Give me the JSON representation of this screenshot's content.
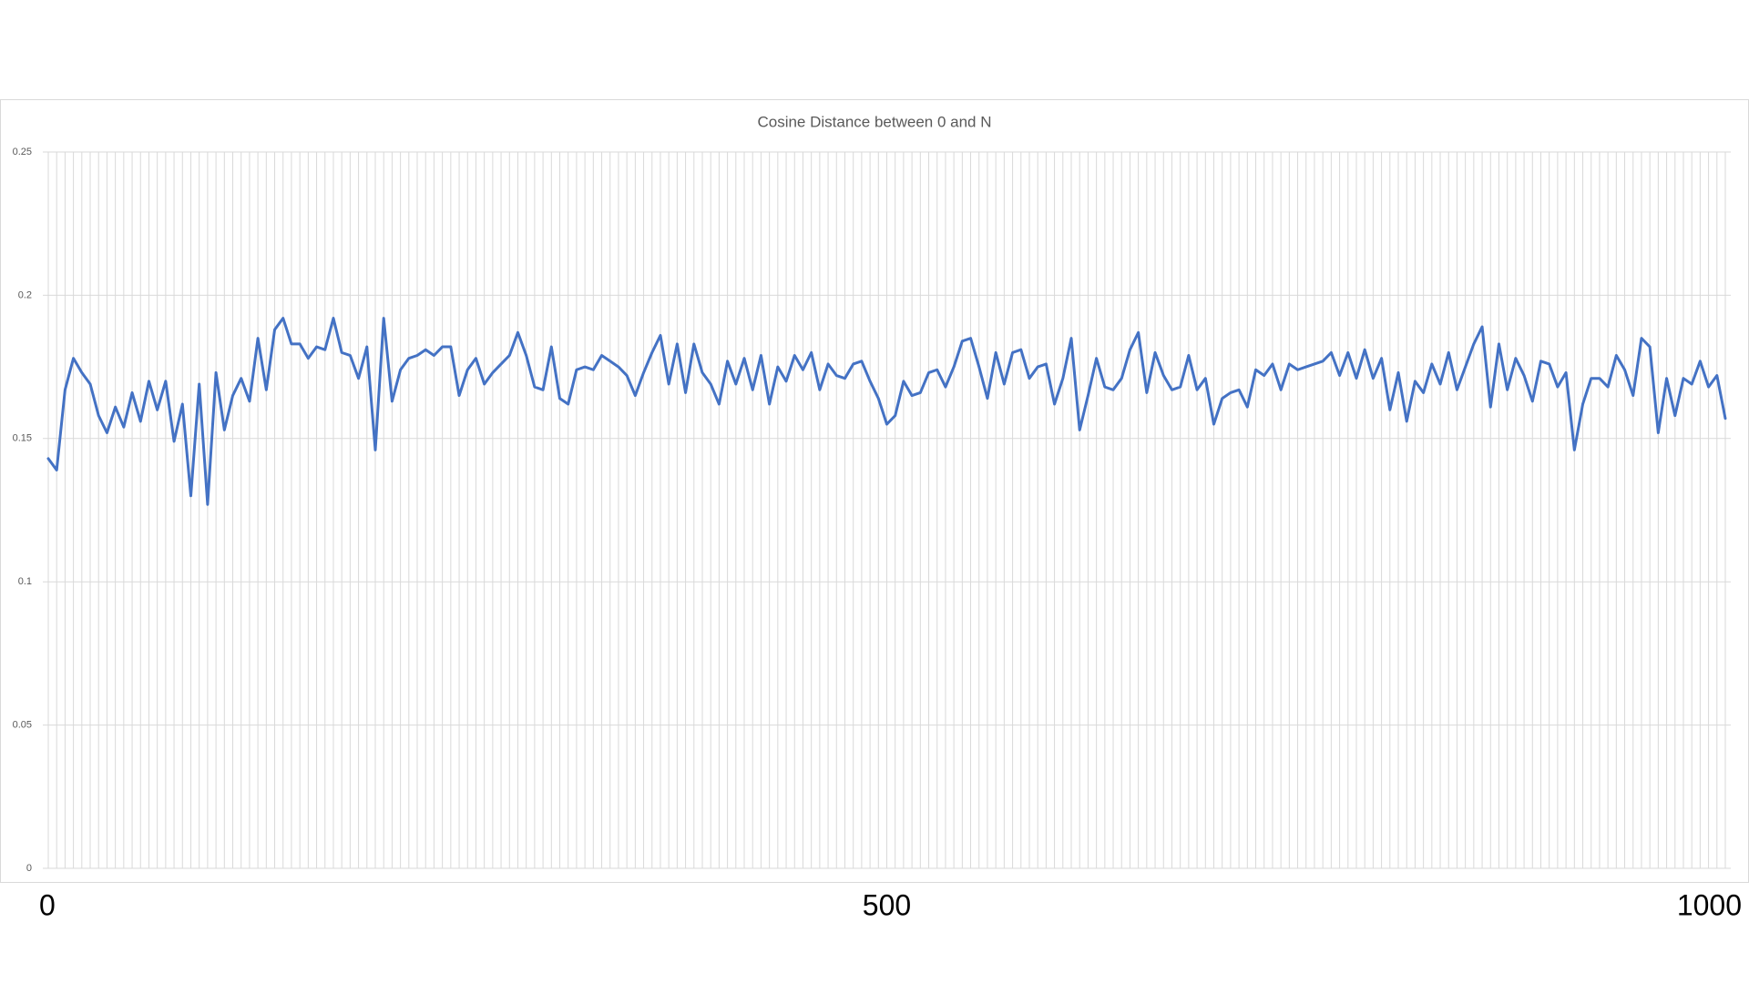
{
  "chart_data": {
    "type": "line",
    "title": "Cosine Distance between 0 and N",
    "x": [
      0,
      5,
      10,
      15,
      20,
      25,
      30,
      35,
      40,
      45,
      50,
      55,
      60,
      65,
      70,
      75,
      80,
      85,
      90,
      95,
      100,
      105,
      110,
      115,
      120,
      125,
      130,
      135,
      140,
      145,
      150,
      155,
      160,
      165,
      170,
      175,
      180,
      185,
      190,
      195,
      200,
      205,
      210,
      215,
      220,
      225,
      230,
      235,
      240,
      245,
      250,
      255,
      260,
      265,
      270,
      275,
      280,
      285,
      290,
      295,
      300,
      305,
      310,
      315,
      320,
      325,
      330,
      335,
      340,
      345,
      350,
      355,
      360,
      365,
      370,
      375,
      380,
      385,
      390,
      395,
      400,
      405,
      410,
      415,
      420,
      425,
      430,
      435,
      440,
      445,
      450,
      455,
      460,
      465,
      470,
      475,
      480,
      485,
      490,
      495,
      500,
      505,
      510,
      515,
      520,
      525,
      530,
      535,
      540,
      545,
      550,
      555,
      560,
      565,
      570,
      575,
      580,
      585,
      590,
      595,
      600,
      605,
      610,
      615,
      620,
      625,
      630,
      635,
      640,
      645,
      650,
      655,
      660,
      665,
      670,
      675,
      680,
      685,
      690,
      695,
      700,
      705,
      710,
      715,
      720,
      725,
      730,
      735,
      740,
      745,
      750,
      755,
      760,
      765,
      770,
      775,
      780,
      785,
      790,
      795,
      800,
      805,
      810,
      815,
      820,
      825,
      830,
      835,
      840,
      845,
      850,
      855,
      860,
      865,
      870,
      875,
      880,
      885,
      890,
      895,
      900,
      905,
      910,
      915,
      920,
      925,
      930,
      935,
      940,
      945,
      950,
      955,
      960,
      965,
      970,
      975,
      980,
      985,
      990,
      995,
      1000
    ],
    "values": [
      0.143,
      0.139,
      0.167,
      0.178,
      0.173,
      0.169,
      0.158,
      0.152,
      0.161,
      0.154,
      0.166,
      0.156,
      0.17,
      0.16,
      0.17,
      0.149,
      0.162,
      0.13,
      0.169,
      0.127,
      0.173,
      0.153,
      0.165,
      0.171,
      0.163,
      0.185,
      0.167,
      0.188,
      0.192,
      0.183,
      0.183,
      0.178,
      0.182,
      0.181,
      0.192,
      0.18,
      0.179,
      0.171,
      0.182,
      0.146,
      0.192,
      0.163,
      0.174,
      0.178,
      0.179,
      0.181,
      0.179,
      0.182,
      0.182,
      0.165,
      0.174,
      0.178,
      0.169,
      0.173,
      0.176,
      0.179,
      0.187,
      0.179,
      0.168,
      0.167,
      0.182,
      0.164,
      0.162,
      0.174,
      0.175,
      0.174,
      0.179,
      0.177,
      0.175,
      0.172,
      0.165,
      0.173,
      0.18,
      0.186,
      0.169,
      0.183,
      0.166,
      0.183,
      0.173,
      0.169,
      0.162,
      0.177,
      0.169,
      0.178,
      0.167,
      0.179,
      0.162,
      0.175,
      0.17,
      0.179,
      0.174,
      0.18,
      0.167,
      0.176,
      0.172,
      0.171,
      0.176,
      0.177,
      0.17,
      0.164,
      0.155,
      0.158,
      0.17,
      0.165,
      0.166,
      0.173,
      0.174,
      0.168,
      0.175,
      0.184,
      0.185,
      0.175,
      0.164,
      0.18,
      0.169,
      0.18,
      0.181,
      0.171,
      0.175,
      0.176,
      0.162,
      0.171,
      0.185,
      0.153,
      0.165,
      0.178,
      0.168,
      0.167,
      0.171,
      0.181,
      0.187,
      0.166,
      0.18,
      0.172,
      0.167,
      0.168,
      0.179,
      0.167,
      0.171,
      0.155,
      0.164,
      0.166,
      0.167,
      0.161,
      0.174,
      0.172,
      0.176,
      0.167,
      0.176,
      0.174,
      0.175,
      0.176,
      0.177,
      0.18,
      0.172,
      0.18,
      0.171,
      0.181,
      0.171,
      0.178,
      0.16,
      0.173,
      0.156,
      0.17,
      0.166,
      0.176,
      0.169,
      0.18,
      0.167,
      0.175,
      0.183,
      0.189,
      0.161,
      0.183,
      0.167,
      0.178,
      0.172,
      0.163,
      0.177,
      0.176,
      0.168,
      0.173,
      0.146,
      0.162,
      0.171,
      0.171,
      0.168,
      0.179,
      0.174,
      0.165,
      0.185,
      0.182,
      0.152,
      0.171,
      0.158,
      0.171,
      0.169,
      0.177,
      0.168,
      0.172,
      0.157
    ],
    "color": "#4472c4",
    "xlim": [
      0,
      1000
    ],
    "xticks": [
      0,
      500,
      1000
    ],
    "ylim": [
      0,
      0.25
    ],
    "yticks": [
      0,
      0.05,
      0.1,
      0.15,
      0.2,
      0.25
    ],
    "grid": true
  }
}
